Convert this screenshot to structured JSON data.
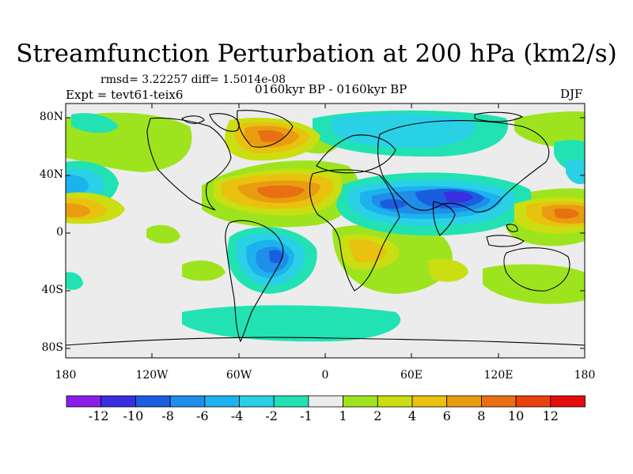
{
  "title": "Streamfunction Perturbation at 200 hPa (km2/s)",
  "stats": "rmsd= 3.22257 diff= 1.5014e-08",
  "experiment": "Expt = tevt61-teix6",
  "period": "0160kyr BP - 0160kyr BP",
  "season": "DJF",
  "lat_labels": [
    "80N",
    "40N",
    "0",
    "40S",
    "80S"
  ],
  "lon_labels": [
    "180",
    "120W",
    "60W",
    "0",
    "60E",
    "120E",
    "180"
  ],
  "colorbar": {
    "labels": [
      "-12",
      "-10",
      "-8",
      "-6",
      "-4",
      "-2",
      "-1",
      "1",
      "2",
      "4",
      "6",
      "8",
      "10",
      "12"
    ],
    "colors": [
      "#8a1ee8",
      "#3a2ee0",
      "#1a5ee0",
      "#1e8ee8",
      "#1cb2ee",
      "#2ad0e6",
      "#22e2b4",
      "#ececec",
      "#9ee41e",
      "#cade12",
      "#e8c20e",
      "#ea9c10",
      "#e87012",
      "#e8400e",
      "#e40c0c"
    ]
  },
  "colors": {
    "background_field": "#ececec",
    "coast": "#000000"
  }
}
